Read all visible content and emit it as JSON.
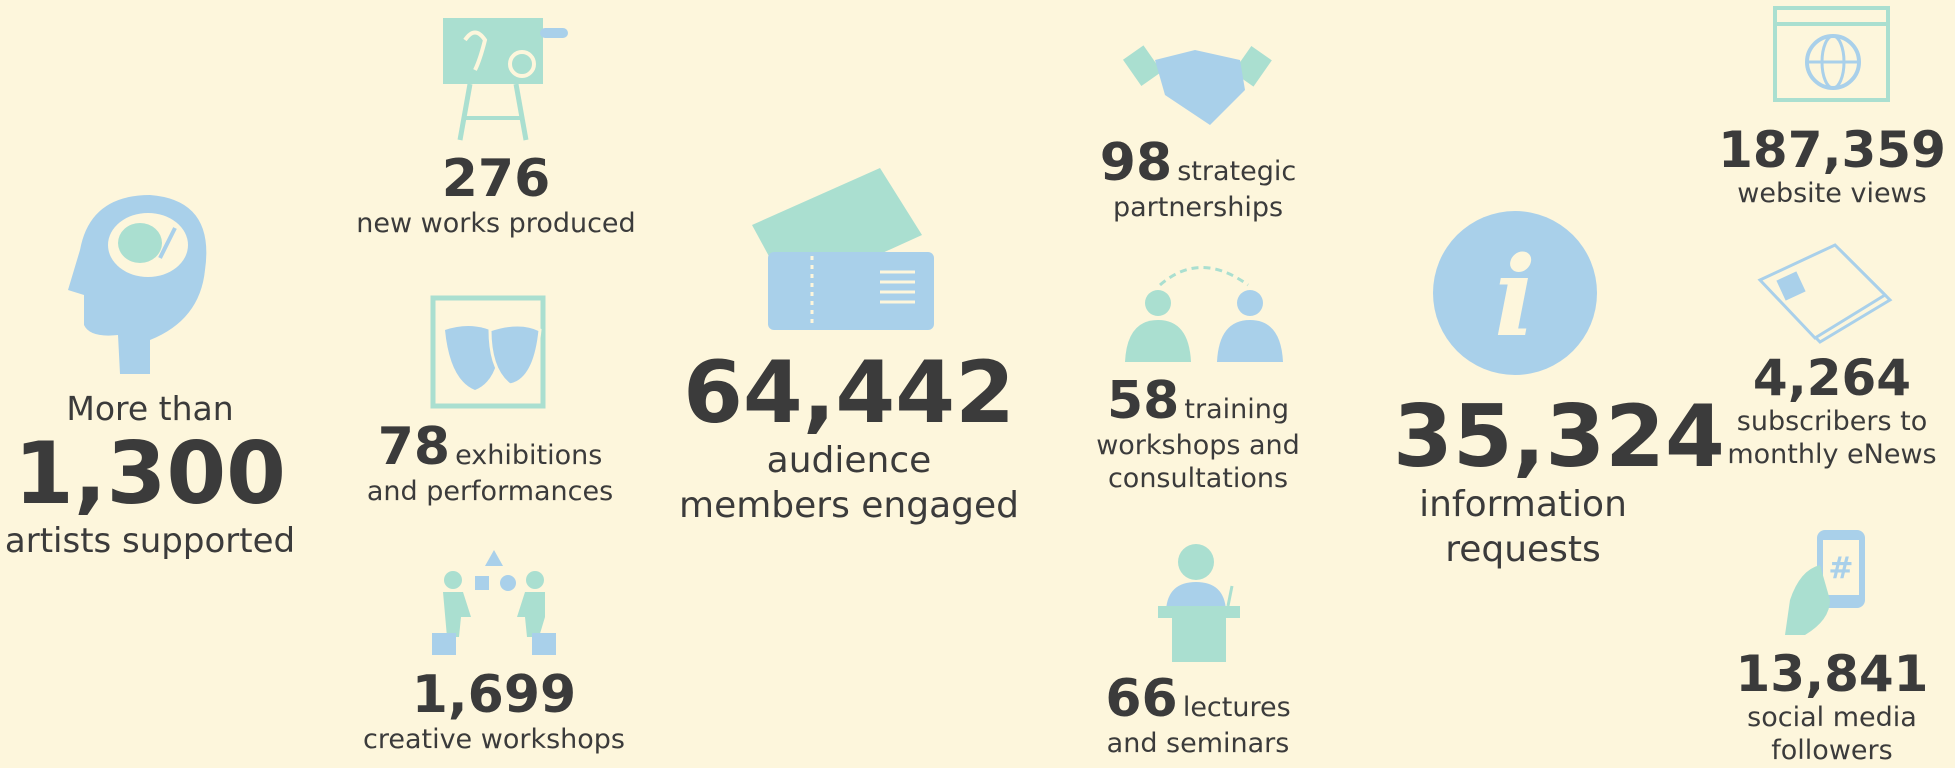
{
  "stats": [
    {
      "prefix": "More than",
      "value": "1,300",
      "label": "artists supported"
    },
    {
      "value": "276",
      "label": "new works produced"
    },
    {
      "value": "78",
      "label": "exhibitions and performances"
    },
    {
      "value": "1,699",
      "label": "creative workshops"
    },
    {
      "value": "64,442",
      "label": "audience members engaged"
    },
    {
      "value": "98",
      "label": "strategic partnerships"
    },
    {
      "value": "58",
      "label": "training workshops and consultations"
    },
    {
      "value": "66",
      "label": "lectures and seminars"
    },
    {
      "value": "35,324",
      "label": "information requests"
    },
    {
      "value": "187,359",
      "label": "website views"
    },
    {
      "value": "4,264",
      "label": "subscribers to monthly eNews"
    },
    {
      "value": "13,841",
      "label": "social media followers"
    }
  ]
}
